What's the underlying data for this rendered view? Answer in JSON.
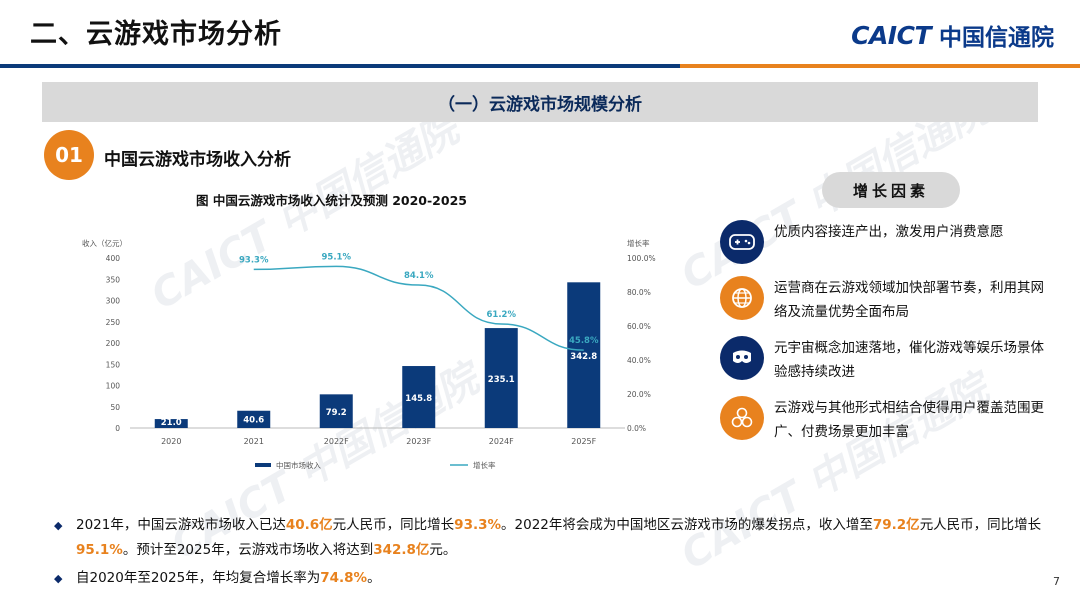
{
  "header": {
    "title": "二、云游戏市场分析",
    "logo_en": "CAICT",
    "logo_cn": "中国信通院"
  },
  "section": {
    "title": "（一）云游戏市场规模分析"
  },
  "subsection": {
    "number": "01",
    "title": "中国云游戏市场收入分析"
  },
  "chart_data": {
    "type": "bar",
    "title": "图  中国云游戏市场收入统计及预测 2020-2025",
    "categories": [
      "2020",
      "2021",
      "2022F",
      "2023F",
      "2024F",
      "2025F"
    ],
    "ylabel": "收入（亿元）",
    "y2label": "增长率",
    "ylim": [
      0,
      400
    ],
    "y2lim": [
      0,
      100
    ],
    "y_ticks": [
      "0",
      "50",
      "100",
      "150",
      "200",
      "250",
      "300",
      "350",
      "400"
    ],
    "y2_ticks": [
      "0.0%",
      "20.0%",
      "40.0%",
      "60.0%",
      "80.0%",
      "100.0%"
    ],
    "series": [
      {
        "name": "中国市场收入",
        "type": "bar",
        "values": [
          21.0,
          40.6,
          79.2,
          145.8,
          235.1,
          342.8
        ],
        "labels": [
          "21.0",
          "40.6",
          "79.2",
          "145.8",
          "235.1",
          "342.8"
        ],
        "color": "#0b3a7a"
      },
      {
        "name": "增长率",
        "type": "line",
        "values": [
          null,
          93.3,
          95.1,
          84.1,
          61.2,
          45.8
        ],
        "labels": [
          "",
          "93.3%",
          "95.1%",
          "84.1%",
          "61.2%",
          "45.8%"
        ],
        "color": "#3aa8c0"
      }
    ],
    "legend": "bottom"
  },
  "factors": {
    "title": "增长因素",
    "items": [
      {
        "icon": "gamepad-icon",
        "text": "优质内容接连产出，激发用户消费意愿",
        "color": "#0b2a6a"
      },
      {
        "icon": "globe-network-icon",
        "text": "运营商在云游戏领域加快部署节奏，利用其网络及流量优势全面布局",
        "color": "#e8821e"
      },
      {
        "icon": "vr-headset-icon",
        "text": "元宇宙概念加速落地，催化游戏等娱乐场景体验感持续改进",
        "color": "#0b2a6a"
      },
      {
        "icon": "hexagons-icon",
        "text": "云游戏与其他形式相结合使得用户覆盖范围更广、付费场景更加丰富",
        "color": "#e8821e"
      }
    ]
  },
  "bullets": {
    "b1": {
      "t1": "2021年，中国云游戏市场收入已达",
      "h1": "40.6亿",
      "t2": "元人民币，同比增长",
      "h2": "93.3%",
      "t3": "。2022年将会成为中国地区云游戏市场的爆发拐点，收入增至",
      "h3": "79.2亿",
      "t4": "元人民币，同比增长",
      "h4": "95.1%",
      "t5": "。预计至2025年，云游戏市场收入将达到",
      "h5": "342.8亿",
      "t6": "元。"
    },
    "b2": {
      "t1": "自2020年至2025年，年均复合增长率为",
      "h1": "74.8%",
      "t2": "。"
    }
  },
  "page_number": "7",
  "watermark": "CAICT 中国信通院"
}
